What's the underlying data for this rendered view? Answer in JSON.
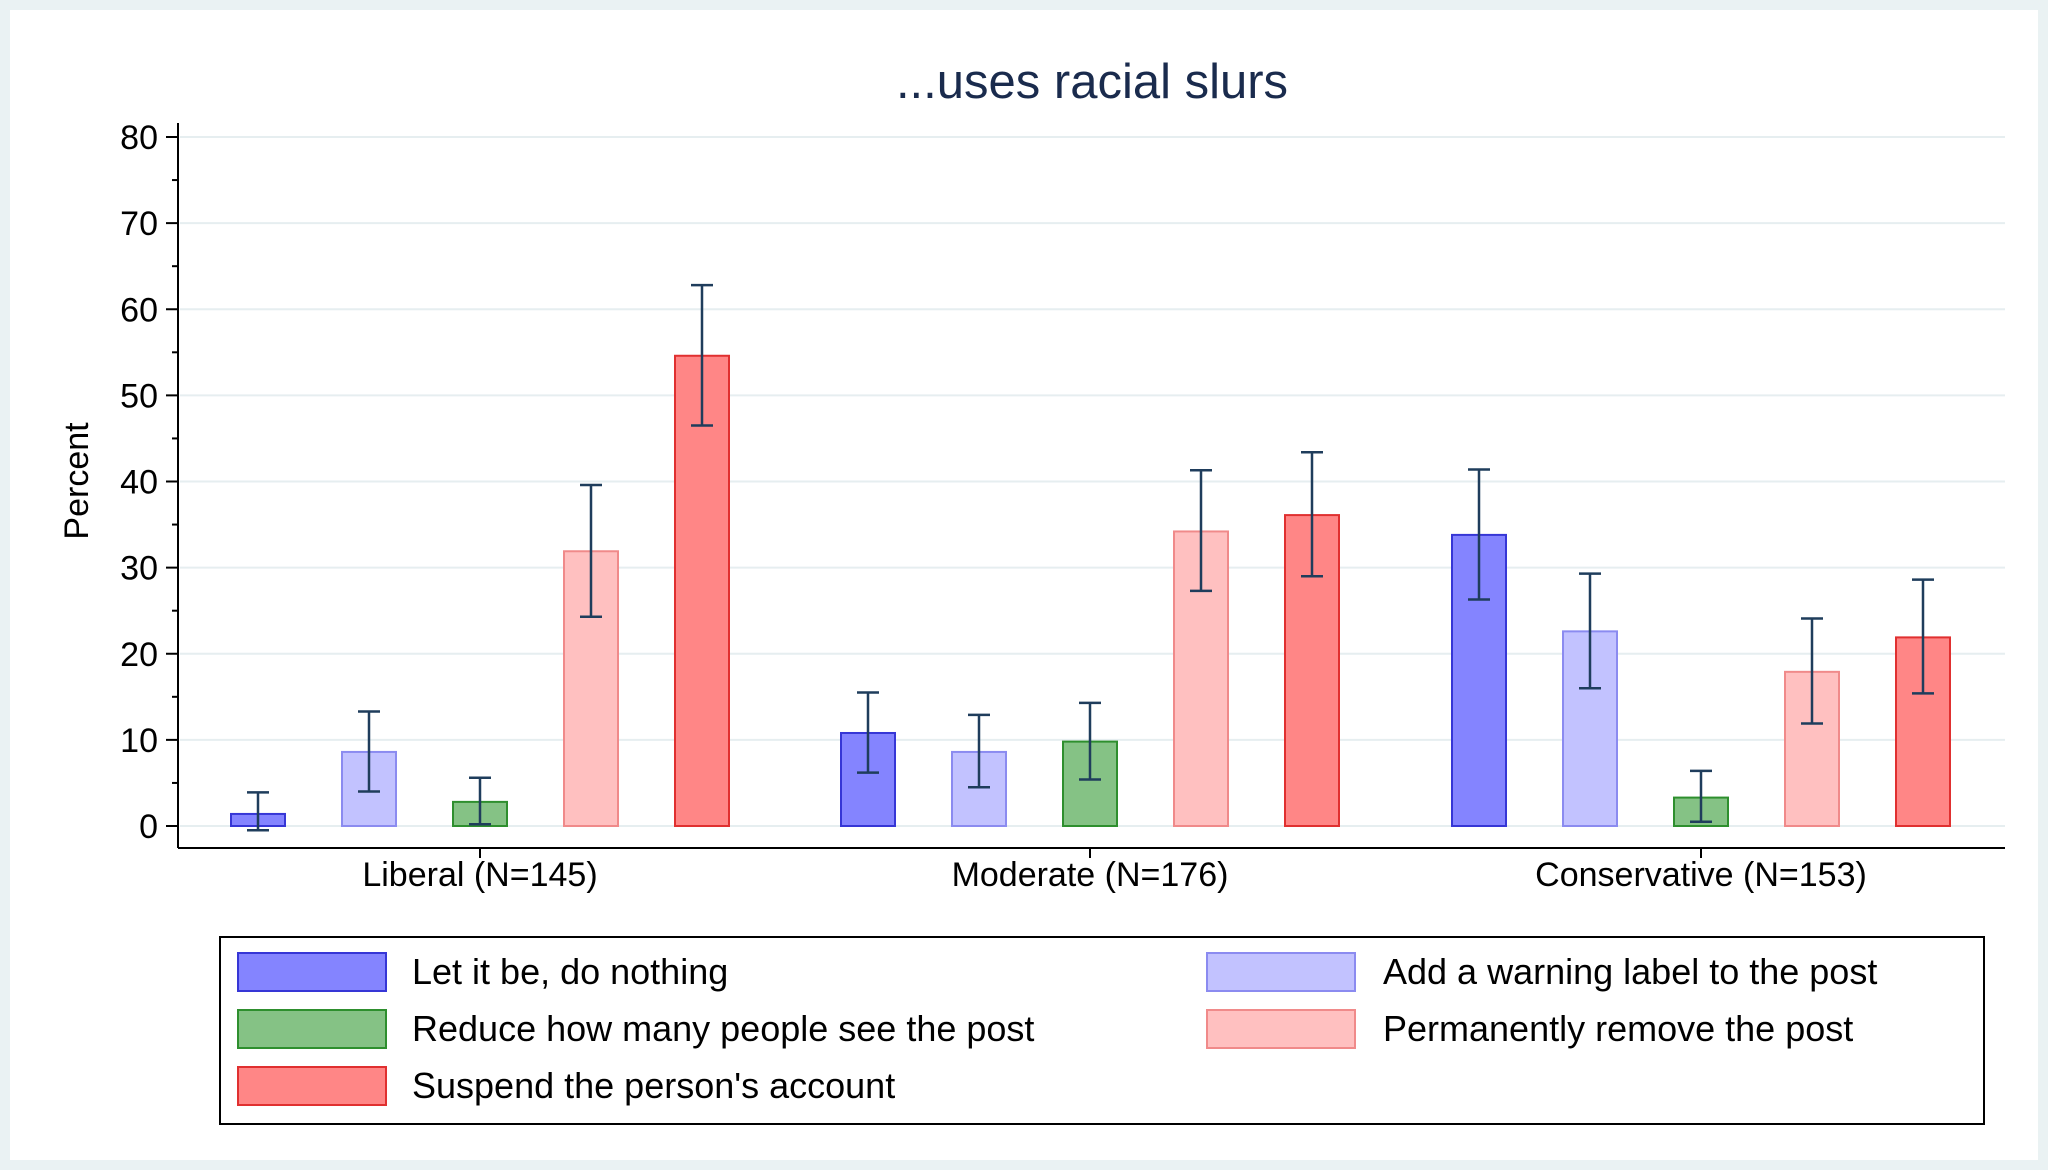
{
  "chart_data": {
    "type": "bar",
    "title": "...uses racial slurs",
    "ylabel": "Percent",
    "xlabel": "",
    "ylim": [
      0,
      80
    ],
    "yticks": [
      "0",
      "10",
      "20",
      "30",
      "40",
      "50",
      "60",
      "70",
      "80"
    ],
    "grid": true,
    "legend_position": "bottom",
    "categories": [
      "Liberal (N=145)",
      "Moderate (N=176)",
      "Conservative (N=153)"
    ],
    "series": [
      {
        "name": "Let it be, do nothing",
        "color": "#8484ff",
        "border": "#3636d6",
        "values": [
          1.4,
          10.8,
          33.8
        ],
        "ci_low": [
          -0.5,
          6.2,
          26.3
        ],
        "ci_high": [
          3.9,
          15.5,
          41.4
        ]
      },
      {
        "name": "Add a warning label to the post",
        "color": "#c2c2ff",
        "border": "#8b8bf0",
        "values": [
          8.6,
          8.6,
          22.6
        ],
        "ci_low": [
          4.0,
          4.5,
          16.0
        ],
        "ci_high": [
          13.3,
          12.9,
          29.3
        ]
      },
      {
        "name": "Reduce how many people see the post",
        "color": "#85c285",
        "border": "#2e8f2e",
        "values": [
          2.8,
          9.8,
          3.3
        ],
        "ci_low": [
          0.2,
          5.4,
          0.5
        ],
        "ci_high": [
          5.6,
          14.3,
          6.4
        ]
      },
      {
        "name": "Permanently remove the post",
        "color": "#ffc0c0",
        "border": "#f08a8a",
        "values": [
          31.9,
          34.2,
          17.9
        ],
        "ci_low": [
          24.3,
          27.3,
          11.9
        ],
        "ci_high": [
          39.6,
          41.3,
          24.1
        ]
      },
      {
        "name": "Suspend the person's account",
        "color": "#ff8686",
        "border": "#e03030",
        "values": [
          54.6,
          36.1,
          21.9
        ],
        "ci_low": [
          46.5,
          29.0,
          15.4
        ],
        "ci_high": [
          62.8,
          43.4,
          28.6
        ]
      }
    ],
    "errorbar_color": "#1f3d5c"
  }
}
